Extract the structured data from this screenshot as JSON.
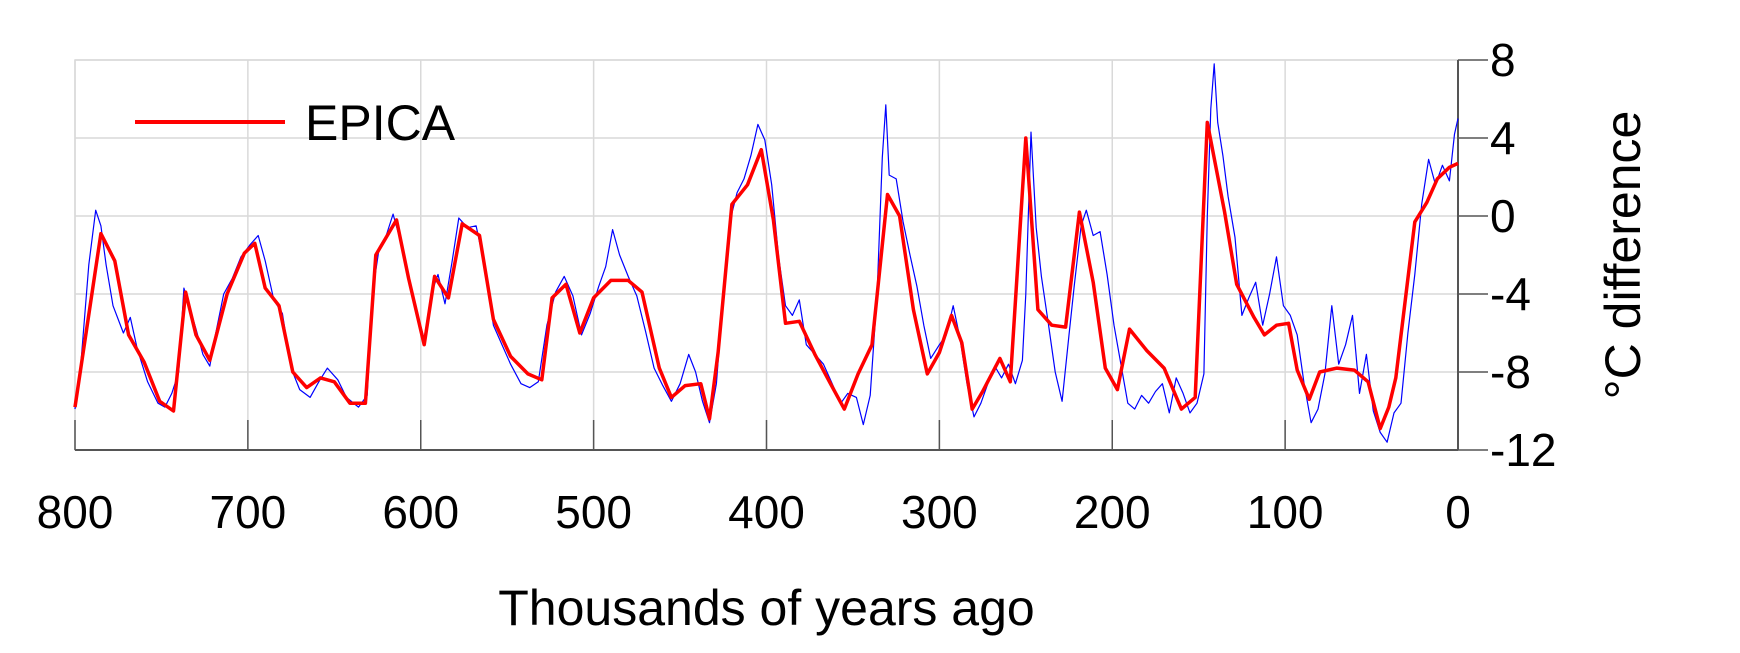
{
  "chart_data": {
    "type": "line",
    "xlabel": "Thousands of years ago",
    "ylabel": "°C difference",
    "xlim": [
      800,
      0
    ],
    "ylim": [
      -12,
      8
    ],
    "x_ticks": [
      800,
      700,
      600,
      500,
      400,
      300,
      200,
      100,
      0
    ],
    "x_tick_labels": [
      "800",
      "700",
      "600",
      "500",
      "400",
      "300",
      "200",
      "100",
      "0"
    ],
    "y_ticks": [
      8,
      4,
      0,
      -4,
      -8,
      -12
    ],
    "y_tick_labels": [
      "8",
      "4",
      "0",
      "-4",
      "-8",
      "-12"
    ],
    "y_axis_side": "right",
    "grid": true,
    "legend": {
      "position": "top-left",
      "entries": [
        "EPICA"
      ]
    },
    "series": [
      {
        "name": "EPICA",
        "color": "#ff0000",
        "points": [
          [
            800,
            -9.8
          ],
          [
            785,
            -0.9
          ],
          [
            777,
            -2.3
          ],
          [
            769,
            -6.1
          ],
          [
            760,
            -7.5
          ],
          [
            751,
            -9.5
          ],
          [
            743,
            -10.0
          ],
          [
            736,
            -3.9
          ],
          [
            730,
            -6.1
          ],
          [
            722,
            -7.4
          ],
          [
            712,
            -4.0
          ],
          [
            702,
            -1.9
          ],
          [
            696,
            -1.4
          ],
          [
            690,
            -3.7
          ],
          [
            682,
            -4.6
          ],
          [
            674,
            -8.0
          ],
          [
            666,
            -8.8
          ],
          [
            658,
            -8.3
          ],
          [
            650,
            -8.5
          ],
          [
            641,
            -9.6
          ],
          [
            632,
            -9.6
          ],
          [
            626,
            -2.0
          ],
          [
            614,
            -0.2
          ],
          [
            607,
            -3.2
          ],
          [
            598,
            -6.6
          ],
          [
            592,
            -3.1
          ],
          [
            584,
            -4.2
          ],
          [
            576,
            -0.4
          ],
          [
            566,
            -1.0
          ],
          [
            558,
            -5.3
          ],
          [
            548,
            -7.2
          ],
          [
            538,
            -8.1
          ],
          [
            530,
            -8.4
          ],
          [
            524,
            -4.2
          ],
          [
            516,
            -3.5
          ],
          [
            508,
            -6.0
          ],
          [
            500,
            -4.2
          ],
          [
            490,
            -3.3
          ],
          [
            480,
            -3.3
          ],
          [
            472,
            -3.9
          ],
          [
            462,
            -7.8
          ],
          [
            455,
            -9.3
          ],
          [
            447,
            -8.7
          ],
          [
            438,
            -8.6
          ],
          [
            433,
            -10.4
          ],
          [
            428,
            -7.0
          ],
          [
            420,
            0.6
          ],
          [
            411,
            1.6
          ],
          [
            403,
            3.4
          ],
          [
            396,
            -0.2
          ],
          [
            389,
            -5.5
          ],
          [
            381,
            -5.4
          ],
          [
            372,
            -7.1
          ],
          [
            363,
            -8.6
          ],
          [
            355,
            -9.9
          ],
          [
            347,
            -8.1
          ],
          [
            339,
            -6.6
          ],
          [
            330,
            1.1
          ],
          [
            323,
            0.0
          ],
          [
            315,
            -4.8
          ],
          [
            307,
            -8.1
          ],
          [
            300,
            -7.0
          ],
          [
            293,
            -5.1
          ],
          [
            287,
            -6.5
          ],
          [
            281,
            -9.9
          ],
          [
            275,
            -9.0
          ],
          [
            265,
            -7.3
          ],
          [
            259,
            -8.5
          ],
          [
            250,
            4.0
          ],
          [
            243,
            -4.8
          ],
          [
            235,
            -5.6
          ],
          [
            227,
            -5.7
          ],
          [
            219,
            0.2
          ],
          [
            211,
            -3.4
          ],
          [
            204,
            -7.8
          ],
          [
            197,
            -8.9
          ],
          [
            190,
            -5.8
          ],
          [
            180,
            -6.9
          ],
          [
            170,
            -7.8
          ],
          [
            160,
            -9.9
          ],
          [
            152,
            -9.3
          ],
          [
            145,
            4.8
          ],
          [
            135,
            0.2
          ],
          [
            128,
            -3.5
          ],
          [
            118,
            -5.2
          ],
          [
            112,
            -6.1
          ],
          [
            105,
            -5.6
          ],
          [
            98,
            -5.5
          ],
          [
            93,
            -7.9
          ],
          [
            86,
            -9.4
          ],
          [
            80,
            -8.0
          ],
          [
            70,
            -7.8
          ],
          [
            60,
            -7.9
          ],
          [
            52,
            -8.5
          ],
          [
            45,
            -10.9
          ],
          [
            40,
            -9.8
          ],
          [
            36,
            -8.3
          ],
          [
            25,
            -0.3
          ],
          [
            18,
            0.7
          ],
          [
            12,
            1.9
          ],
          [
            5,
            2.5
          ],
          [
            0,
            2.7
          ]
        ]
      },
      {
        "name": "",
        "color": "#0000ff",
        "points": [
          [
            800,
            -9.9
          ],
          [
            797,
            -8.0
          ],
          [
            792,
            -2.5
          ],
          [
            788,
            0.3
          ],
          [
            785,
            -0.5
          ],
          [
            782,
            -2.5
          ],
          [
            778,
            -4.6
          ],
          [
            772,
            -6.0
          ],
          [
            768,
            -5.2
          ],
          [
            764,
            -6.8
          ],
          [
            758,
            -8.5
          ],
          [
            752,
            -9.6
          ],
          [
            748,
            -9.8
          ],
          [
            744,
            -9.1
          ],
          [
            740,
            -8.0
          ],
          [
            737,
            -3.7
          ],
          [
            734,
            -4.6
          ],
          [
            730,
            -5.8
          ],
          [
            726,
            -7.1
          ],
          [
            722,
            -7.7
          ],
          [
            719,
            -6.2
          ],
          [
            714,
            -4.0
          ],
          [
            709,
            -3.2
          ],
          [
            704,
            -2.1
          ],
          [
            699,
            -1.5
          ],
          [
            694,
            -1.0
          ],
          [
            690,
            -2.3
          ],
          [
            685,
            -4.3
          ],
          [
            680,
            -5.0
          ],
          [
            675,
            -7.8
          ],
          [
            670,
            -8.9
          ],
          [
            664,
            -9.3
          ],
          [
            659,
            -8.5
          ],
          [
            654,
            -7.8
          ],
          [
            648,
            -8.4
          ],
          [
            643,
            -9.3
          ],
          [
            636,
            -9.8
          ],
          [
            631,
            -9.2
          ],
          [
            628,
            -4.0
          ],
          [
            624,
            -1.6
          ],
          [
            620,
            -1.0
          ],
          [
            616,
            0.1
          ],
          [
            612,
            -1.2
          ],
          [
            607,
            -3.1
          ],
          [
            603,
            -4.7
          ],
          [
            598,
            -6.3
          ],
          [
            594,
            -4.0
          ],
          [
            590,
            -3.0
          ],
          [
            586,
            -4.5
          ],
          [
            582,
            -2.4
          ],
          [
            578,
            -0.1
          ],
          [
            573,
            -0.6
          ],
          [
            568,
            -0.5
          ],
          [
            563,
            -2.6
          ],
          [
            558,
            -5.6
          ],
          [
            553,
            -6.6
          ],
          [
            548,
            -7.6
          ],
          [
            542,
            -8.6
          ],
          [
            537,
            -8.8
          ],
          [
            532,
            -8.5
          ],
          [
            527,
            -5.6
          ],
          [
            522,
            -3.9
          ],
          [
            517,
            -3.1
          ],
          [
            512,
            -4.1
          ],
          [
            507,
            -6.1
          ],
          [
            502,
            -5.0
          ],
          [
            497,
            -3.6
          ],
          [
            493,
            -2.6
          ],
          [
            489,
            -0.7
          ],
          [
            485,
            -2.0
          ],
          [
            480,
            -3.1
          ],
          [
            475,
            -4.1
          ],
          [
            470,
            -5.9
          ],
          [
            465,
            -7.8
          ],
          [
            460,
            -8.7
          ],
          [
            455,
            -9.5
          ],
          [
            450,
            -8.6
          ],
          [
            445,
            -7.1
          ],
          [
            441,
            -8.0
          ],
          [
            437,
            -9.5
          ],
          [
            433,
            -10.6
          ],
          [
            429,
            -8.6
          ],
          [
            425,
            -4.0
          ],
          [
            421,
            -0.2
          ],
          [
            417,
            1.2
          ],
          [
            413,
            1.9
          ],
          [
            409,
            3.1
          ],
          [
            405,
            4.7
          ],
          [
            401,
            3.9
          ],
          [
            397,
            1.6
          ],
          [
            393,
            -2.1
          ],
          [
            389,
            -4.6
          ],
          [
            385,
            -5.1
          ],
          [
            381,
            -4.3
          ],
          [
            377,
            -6.6
          ],
          [
            372,
            -7.1
          ],
          [
            367,
            -7.6
          ],
          [
            362,
            -8.6
          ],
          [
            357,
            -9.6
          ],
          [
            353,
            -9.1
          ],
          [
            348,
            -9.3
          ],
          [
            344,
            -10.7
          ],
          [
            340,
            -9.2
          ],
          [
            336,
            -4.0
          ],
          [
            333,
            3.0
          ],
          [
            331,
            5.7
          ],
          [
            329,
            2.1
          ],
          [
            325,
            1.9
          ],
          [
            321,
            -0.3
          ],
          [
            317,
            -2.0
          ],
          [
            313,
            -3.6
          ],
          [
            309,
            -5.6
          ],
          [
            305,
            -7.3
          ],
          [
            300,
            -6.6
          ],
          [
            296,
            -6.1
          ],
          [
            292,
            -4.6
          ],
          [
            288,
            -6.3
          ],
          [
            284,
            -8.6
          ],
          [
            280,
            -10.3
          ],
          [
            276,
            -9.6
          ],
          [
            272,
            -8.6
          ],
          [
            268,
            -7.7
          ],
          [
            264,
            -8.3
          ],
          [
            260,
            -7.6
          ],
          [
            256,
            -8.6
          ],
          [
            252,
            -7.4
          ],
          [
            250,
            -4.0
          ],
          [
            247,
            4.3
          ],
          [
            244,
            -0.6
          ],
          [
            241,
            -3.1
          ],
          [
            237,
            -5.5
          ],
          [
            233,
            -8.0
          ],
          [
            229,
            -9.5
          ],
          [
            225,
            -6.1
          ],
          [
            222,
            -3.6
          ],
          [
            218,
            -0.5
          ],
          [
            215,
            0.3
          ],
          [
            211,
            -1.0
          ],
          [
            207,
            -0.8
          ],
          [
            203,
            -3.0
          ],
          [
            199,
            -5.6
          ],
          [
            195,
            -7.6
          ],
          [
            191,
            -9.6
          ],
          [
            187,
            -9.9
          ],
          [
            183,
            -9.2
          ],
          [
            179,
            -9.6
          ],
          [
            175,
            -9.0
          ],
          [
            171,
            -8.6
          ],
          [
            167,
            -10.1
          ],
          [
            163,
            -8.3
          ],
          [
            159,
            -9.1
          ],
          [
            155,
            -10.1
          ],
          [
            151,
            -9.6
          ],
          [
            147,
            -8.1
          ],
          [
            145,
            0.0
          ],
          [
            143,
            5.5
          ],
          [
            141,
            7.8
          ],
          [
            139,
            4.8
          ],
          [
            136,
            3.1
          ],
          [
            133,
            1.0
          ],
          [
            129,
            -1.1
          ],
          [
            125,
            -5.1
          ],
          [
            121,
            -4.2
          ],
          [
            117,
            -3.4
          ],
          [
            113,
            -5.6
          ],
          [
            109,
            -4.0
          ],
          [
            105,
            -2.1
          ],
          [
            101,
            -4.6
          ],
          [
            97,
            -5.1
          ],
          [
            93,
            -6.1
          ],
          [
            89,
            -8.6
          ],
          [
            85,
            -10.6
          ],
          [
            81,
            -9.9
          ],
          [
            77,
            -8.1
          ],
          [
            73,
            -4.6
          ],
          [
            69,
            -7.6
          ],
          [
            65,
            -6.6
          ],
          [
            61,
            -5.1
          ],
          [
            57,
            -9.1
          ],
          [
            53,
            -7.1
          ],
          [
            49,
            -10.0
          ],
          [
            45,
            -11.1
          ],
          [
            41,
            -11.6
          ],
          [
            37,
            -10.1
          ],
          [
            33,
            -9.6
          ],
          [
            29,
            -6.0
          ],
          [
            25,
            -3.0
          ],
          [
            21,
            0.6
          ],
          [
            17,
            2.9
          ],
          [
            13,
            1.6
          ],
          [
            9,
            2.6
          ],
          [
            5,
            1.8
          ],
          [
            2,
            4.2
          ],
          [
            0,
            5.0
          ]
        ]
      }
    ]
  }
}
